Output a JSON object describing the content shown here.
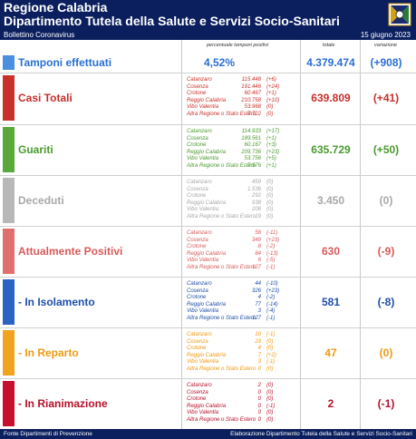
{
  "header": {
    "title1": "Regione Calabria",
    "title2": "Dipartimento Tutela della Salute e Servizi Socio-Sanitari"
  },
  "bulletin": {
    "label": "Bollettino Coronavirus",
    "date": "15 giugno 2023"
  },
  "columns": {
    "positivity": "percentuale tamponi positivi",
    "total": "totale",
    "variation": "variazione"
  },
  "tamponi": {
    "label": "Tamponi effettuati",
    "percent": "4,52%",
    "total": "4.379.474",
    "variation": "(+908)"
  },
  "sections": [
    {
      "label": "Casi Totali",
      "color": "#c8302a",
      "text_color": "#c8302a",
      "total": "639.809",
      "variation": "(+41)",
      "rows": [
        [
          "Catanzaro",
          "115.448",
          "(+6)"
        ],
        [
          "Cosenza",
          "191.446",
          "(+24)"
        ],
        [
          "Crotone",
          "60.467",
          "(+1)"
        ],
        [
          "Reggio Calabria",
          "210.758",
          "(+10)"
        ],
        [
          "Vibo Valentia",
          "53.968",
          "(0)"
        ],
        [
          "Altra Regione o Stato Estero",
          "7.722",
          "(0)"
        ]
      ]
    },
    {
      "label": "Guariti",
      "color": "#5aa83a",
      "text_color": "#4a9a2e",
      "total": "635.729",
      "variation": "(+50)",
      "rows": [
        [
          "Catanzaro",
          "114.933",
          "(+17)"
        ],
        [
          "Cosenza",
          "189.561",
          "(+1)"
        ],
        [
          "Crotone",
          "60.167",
          "(+3)"
        ],
        [
          "Reggio Calabria",
          "209.736",
          "(+23)"
        ],
        [
          "Vibo Valentia",
          "53.756",
          "(+5)"
        ],
        [
          "Altra Regione o Stato Estero",
          "7.576",
          "(+1)"
        ]
      ]
    },
    {
      "label": "Deceduti",
      "color": "#b8b8b8",
      "text_color": "#a8a8a8",
      "total": "3.450",
      "variation": "(0)",
      "rows": [
        [
          "Catanzaro",
          "459",
          "(0)"
        ],
        [
          "Cosenza",
          "1.536",
          "(0)"
        ],
        [
          "Crotone",
          "292",
          "(0)"
        ],
        [
          "Reggio Calabria",
          "938",
          "(0)"
        ],
        [
          "Vibo Valentia",
          "206",
          "(0)"
        ],
        [
          "Altra Regione o Stato Estero",
          "19",
          "(0)"
        ]
      ]
    },
    {
      "label": "Attualmente Positivi",
      "color": "#e07070",
      "text_color": "#d85a5a",
      "total": "630",
      "variation": "(-9)",
      "rows": [
        [
          "Catanzaro",
          "56",
          "(-11)"
        ],
        [
          "Cosenza",
          "349",
          "(+23)"
        ],
        [
          "Crotone",
          "8",
          "(-2)"
        ],
        [
          "Reggio Calabria",
          "84",
          "(-13)"
        ],
        [
          "Vibo Valentia",
          "6",
          "(-5)"
        ],
        [
          "Altra Regione o Stato Estero",
          "127",
          "(-1)"
        ]
      ]
    },
    {
      "label": "- In Isolamento",
      "color": "#2b63c4",
      "text_color": "#1f4fa8",
      "total": "581",
      "variation": "(-8)",
      "rows": [
        [
          "Catanzaro",
          "44",
          "(-10)"
        ],
        [
          "Cosenza",
          "326",
          "(+23)"
        ],
        [
          "Crotone",
          "4",
          "(-2)"
        ],
        [
          "Reggio Calabria",
          "77",
          "(-14)"
        ],
        [
          "Vibo Valentia",
          "3",
          "(-4)"
        ],
        [
          "Altra Regione o Stato Estero",
          "127",
          "(-1)"
        ]
      ]
    },
    {
      "label": "- In Reparto",
      "color": "#f2a31e",
      "text_color": "#f09a10",
      "total": "47",
      "variation": "(0)",
      "rows": [
        [
          "Catanzaro",
          "10",
          "(-1)"
        ],
        [
          "Cosenza",
          "23",
          "(0)"
        ],
        [
          "Crotone",
          "4",
          "(0)"
        ],
        [
          "Reggio Calabria",
          "7",
          "(+2)"
        ],
        [
          "Vibo Valentia",
          "3",
          "(-1)"
        ],
        [
          "Altra Regione o Stato Estero",
          "0",
          "(0)"
        ]
      ]
    },
    {
      "label": "- In Rianimazione",
      "color": "#c8102e",
      "text_color": "#b8102a",
      "total": "2",
      "variation": "(-1)",
      "rows": [
        [
          "Catanzaro",
          "2",
          "(0)"
        ],
        [
          "Cosenza",
          "0",
          "(0)"
        ],
        [
          "Crotone",
          "0",
          "(0)"
        ],
        [
          "Reggio Calabria",
          "0",
          "(-1)"
        ],
        [
          "Vibo Valentia",
          "0",
          "(0)"
        ],
        [
          "Altra Regione o Stato Estero",
          "0",
          "(0)"
        ]
      ]
    }
  ],
  "footer": {
    "left": "Fonte Dipartimenti di Prevenzione",
    "right": "Elaborazione Dipartimento Tutela della Salute e Servizi Socio-Sanitari"
  }
}
